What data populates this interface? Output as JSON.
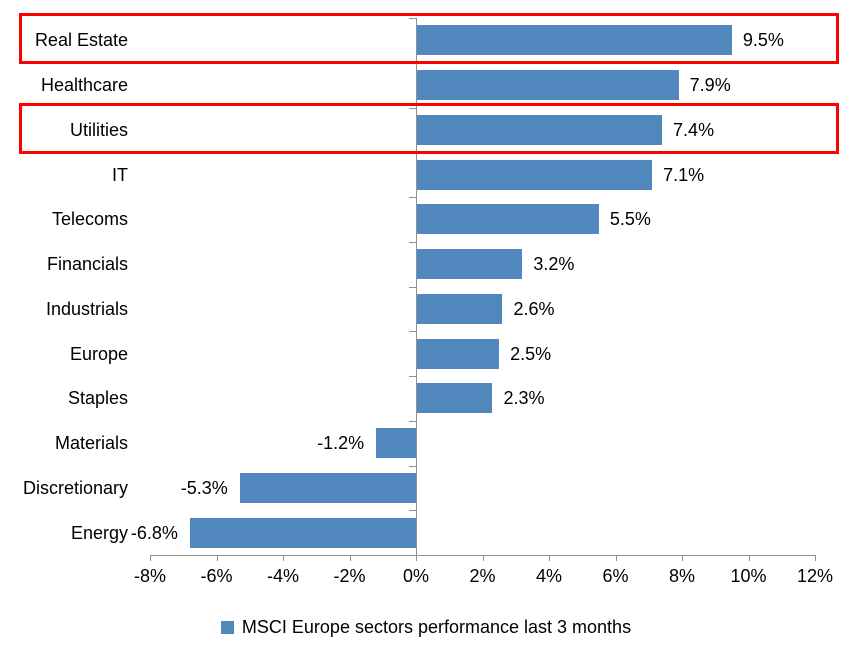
{
  "chart_data": {
    "type": "bar",
    "orientation": "horizontal",
    "title": "",
    "categories": [
      "Real Estate",
      "Healthcare",
      "Utilities",
      "IT",
      "Telecoms",
      "Financials",
      "Industrials",
      "Europe",
      "Staples",
      "Materials",
      "Discretionary",
      "Energy"
    ],
    "values": [
      9.5,
      7.9,
      7.4,
      7.1,
      5.5,
      3.2,
      2.6,
      2.5,
      2.3,
      -1.2,
      -5.3,
      -6.8
    ],
    "value_labels": [
      "9.5%",
      "7.9%",
      "7.4%",
      "7.1%",
      "5.5%",
      "3.2%",
      "2.6%",
      "2.5%",
      "2.3%",
      "-1.2%",
      "-5.3%",
      "-6.8%"
    ],
    "x_tick_labels": [
      "-8%",
      "-6%",
      "-4%",
      "-2%",
      "0%",
      "2%",
      "4%",
      "6%",
      "8%",
      "10%",
      "12%"
    ],
    "x_tick_values": [
      -8,
      -6,
      -4,
      -2,
      0,
      2,
      4,
      6,
      8,
      10,
      12
    ],
    "xlim": [
      -8,
      12
    ],
    "grid": false,
    "legend_label": "MSCI Europe sectors performance last 3 months",
    "legend_position": "bottom-center",
    "bar_color": "#5088BD",
    "axis_color": "#909090",
    "text_color": "#000000",
    "highlight_box_color": "#FF0000",
    "highlighted_categories": [
      "Real Estate",
      "Utilities"
    ]
  }
}
